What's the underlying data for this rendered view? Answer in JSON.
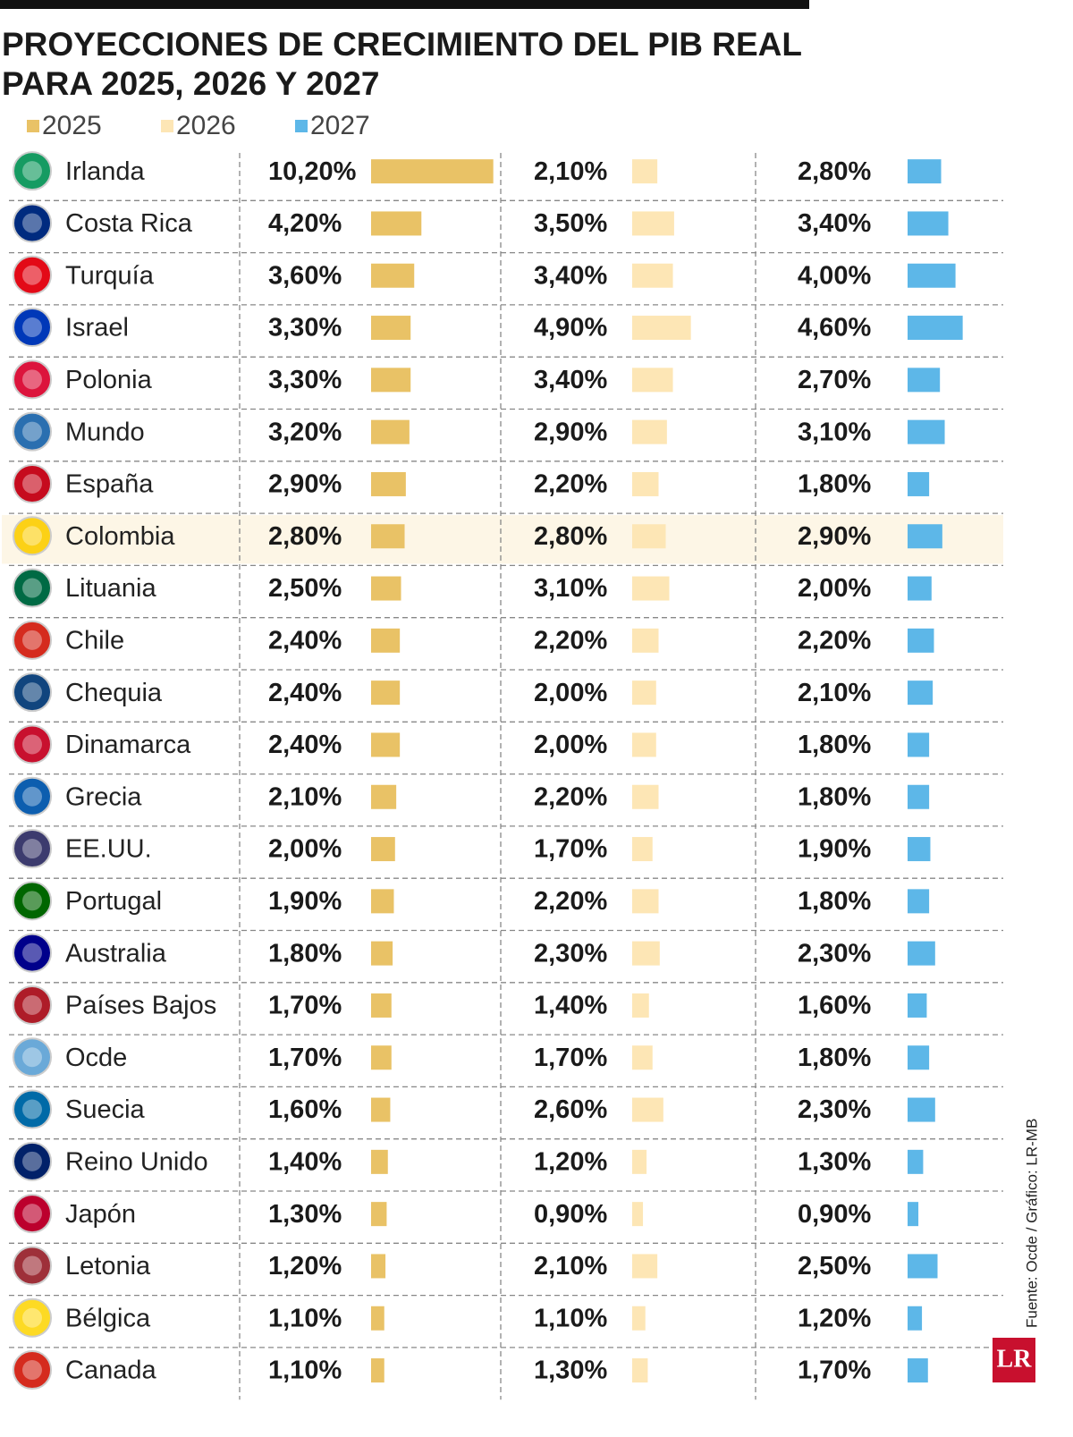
{
  "chart_data": {
    "type": "bar-table",
    "title": "PROYECCIONES DE CRECIMIENTO DEL PIB REAL\nPARA 2025, 2026 Y 2027",
    "categories": [
      "Irlanda",
      "Costa Rica",
      "Turquía",
      "Israel",
      "Polonia",
      "Mundo",
      "España",
      "Colombia",
      "Lituania",
      "Chile",
      "Chequia",
      "Dinamarca",
      "Grecia",
      "EE.UU.",
      "Portugal",
      "Australia",
      "Países Bajos",
      "Ocde",
      "Suecia",
      "Reino Unido",
      "Japón",
      "Letonia",
      "Bélgica",
      "Canada"
    ],
    "highlight": "Colombia",
    "series": [
      {
        "name": "2025",
        "color": "#e9c266",
        "values": [
          10.2,
          4.2,
          3.6,
          3.3,
          3.3,
          3.2,
          2.9,
          2.8,
          2.5,
          2.4,
          2.4,
          2.4,
          2.1,
          2.0,
          1.9,
          1.8,
          1.7,
          1.7,
          1.6,
          1.4,
          1.3,
          1.2,
          1.1,
          1.1
        ],
        "value_labels": [
          "10,20%",
          "4,20%",
          "3,60%",
          "3,30%",
          "3,30%",
          "3,20%",
          "2,90%",
          "2,80%",
          "2,50%",
          "2,40%",
          "2,40%",
          "2,40%",
          "2,10%",
          "2,00%",
          "1,90%",
          "1,80%",
          "1,70%",
          "1,70%",
          "1,60%",
          "1,40%",
          "1,30%",
          "1,20%",
          "1,10%",
          "1,10%"
        ]
      },
      {
        "name": "2026",
        "color": "#fde6b5",
        "values": [
          2.1,
          3.5,
          3.4,
          4.9,
          3.4,
          2.9,
          2.2,
          2.8,
          3.1,
          2.2,
          2.0,
          2.0,
          2.2,
          1.7,
          2.2,
          2.3,
          1.4,
          1.7,
          2.6,
          1.2,
          0.9,
          2.1,
          1.1,
          1.3
        ],
        "value_labels": [
          "2,10%",
          "3,50%",
          "3,40%",
          "4,90%",
          "3,40%",
          "2,90%",
          "2,20%",
          "2,80%",
          "3,10%",
          "2,20%",
          "2,00%",
          "2,00%",
          "2,20%",
          "1,70%",
          "2,20%",
          "2,30%",
          "1,40%",
          "1,70%",
          "2,60%",
          "1,20%",
          "0,90%",
          "2,10%",
          "1,10%",
          "1,30%"
        ]
      },
      {
        "name": "2027",
        "color": "#5db7e8",
        "values": [
          2.8,
          3.4,
          4.0,
          4.6,
          2.7,
          3.1,
          1.8,
          2.9,
          2.0,
          2.2,
          2.1,
          1.8,
          1.8,
          1.9,
          1.8,
          2.3,
          1.6,
          1.8,
          2.3,
          1.3,
          0.9,
          2.5,
          1.2,
          1.7
        ],
        "value_labels": [
          "2,80%",
          "3,40%",
          "4,00%",
          "4,60%",
          "2,70%",
          "3,10%",
          "1,80%",
          "2,90%",
          "2,00%",
          "2,20%",
          "2,10%",
          "1,80%",
          "1,80%",
          "1,90%",
          "1,80%",
          "2,30%",
          "1,60%",
          "1,80%",
          "2,30%",
          "1,30%",
          "0,90%",
          "2,50%",
          "1,20%",
          "1,70%"
        ]
      }
    ],
    "source": "Fuente: Ocde / Gráfico: LR-MB",
    "logo": "LR"
  }
}
